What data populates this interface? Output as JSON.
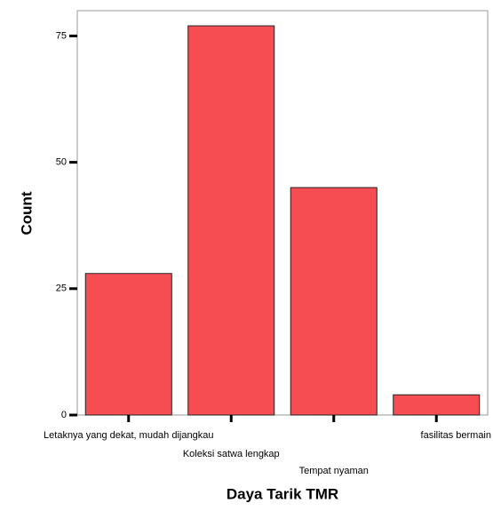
{
  "chart_data": {
    "type": "bar",
    "x_label": "Daya Tarik TMR",
    "y_label": "Count",
    "categories": [
      "Letaknya yang dekat, mudah dijangkau",
      "Koleksi satwa lengkap",
      "Tempat nyaman",
      "fasilitas bermain"
    ],
    "values": [
      28,
      77,
      45,
      4
    ],
    "color": "#f5434a",
    "ylim": [
      0,
      80
    ],
    "yticks": [
      0,
      25,
      50,
      75
    ],
    "grid": false
  }
}
